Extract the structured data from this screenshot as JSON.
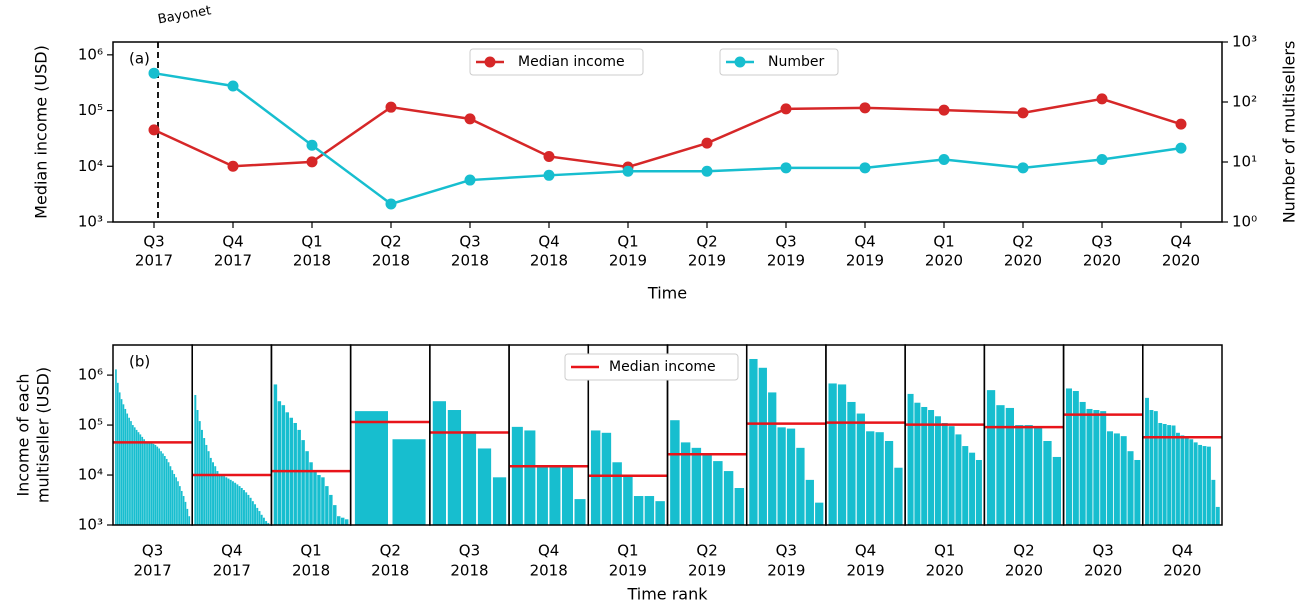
{
  "chart_data": [
    {
      "type": "line",
      "panel_label": "(a)",
      "xlabel": "Time",
      "ylabel": "Median income (USD)",
      "y2label": "Number of multisellers",
      "annotation": "Bayonet",
      "categories": [
        [
          "Q3",
          "2017"
        ],
        [
          "Q4",
          "2017"
        ],
        [
          "Q1",
          "2018"
        ],
        [
          "Q2",
          "2018"
        ],
        [
          "Q3",
          "2018"
        ],
        [
          "Q4",
          "2018"
        ],
        [
          "Q1",
          "2019"
        ],
        [
          "Q2",
          "2019"
        ],
        [
          "Q3",
          "2019"
        ],
        [
          "Q4",
          "2019"
        ],
        [
          "Q1",
          "2020"
        ],
        [
          "Q2",
          "2020"
        ],
        [
          "Q3",
          "2020"
        ],
        [
          "Q4",
          "2020"
        ]
      ],
      "series": [
        {
          "name": "Median income",
          "color": "#d62728",
          "values": [
            45000,
            10000,
            12000,
            115000,
            71000,
            15000,
            9700,
            26000,
            107000,
            112000,
            102000,
            91000,
            162000,
            57000
          ]
        },
        {
          "name": "Number",
          "color": "#17becf",
          "axis": "y2",
          "values": [
            302,
            185,
            19,
            2,
            5,
            6,
            7,
            7,
            8,
            8,
            11,
            8,
            11,
            17
          ]
        }
      ],
      "log_scale": true,
      "ylim": [
        1000,
        1700000
      ],
      "yticks": [
        {
          "value": 1000,
          "label": "10³"
        },
        {
          "value": 10000,
          "label": "10⁴"
        },
        {
          "value": 100000,
          "label": "10⁵"
        },
        {
          "value": 1000000,
          "label": "10⁶"
        }
      ],
      "y2lim": [
        1,
        1000
      ],
      "y2ticks": [
        {
          "value": 1,
          "label": "10⁰"
        },
        {
          "value": 10,
          "label": "10¹"
        },
        {
          "value": 100,
          "label": "10²"
        },
        {
          "value": 1000,
          "label": "10³"
        }
      ]
    },
    {
      "type": "bar",
      "panel_label": "(b)",
      "xlabel": "Time rank",
      "ylabel": [
        "Income of each",
        "multiseller (USD)"
      ],
      "categories": [
        [
          "Q3",
          "2017"
        ],
        [
          "Q4",
          "2017"
        ],
        [
          "Q1",
          "2018"
        ],
        [
          "Q2",
          "2018"
        ],
        [
          "Q3",
          "2018"
        ],
        [
          "Q4",
          "2018"
        ],
        [
          "Q1",
          "2019"
        ],
        [
          "Q2",
          "2019"
        ],
        [
          "Q3",
          "2019"
        ],
        [
          "Q4",
          "2019"
        ],
        [
          "Q1",
          "2020"
        ],
        [
          "Q2",
          "2020"
        ],
        [
          "Q3",
          "2020"
        ],
        [
          "Q4",
          "2020"
        ]
      ],
      "color": "#17becf",
      "values": [
        [
          1300000,
          700000,
          450000,
          330000,
          260000,
          210000,
          170000,
          140000,
          120000,
          100000,
          90000,
          80000,
          72000,
          65000,
          58000,
          52000,
          47000,
          45000,
          44000,
          43000,
          42000,
          40000,
          37000,
          34000,
          30000,
          27000,
          24000,
          21000,
          18000,
          15000,
          12500,
          10500,
          9000,
          7500,
          6000,
          4800,
          3800,
          2900,
          2100,
          1500
        ],
        [
          400000,
          200000,
          120000,
          80000,
          55000,
          40000,
          30000,
          22000,
          18000,
          15000,
          12000,
          10500,
          10000,
          9500,
          9000,
          8500,
          8000,
          7500,
          7000,
          6500,
          6000,
          5500,
          5000,
          4500,
          4000,
          3500,
          3000,
          2600,
          2200,
          1900,
          1600,
          1400,
          1200,
          1100
        ],
        [
          650000,
          300000,
          250000,
          180000,
          140000,
          110000,
          80000,
          50000,
          30000,
          18000,
          12000,
          10000,
          9000,
          6000,
          4000,
          2500,
          1500,
          1400,
          1300
        ],
        [
          190000,
          52000
        ],
        [
          300000,
          200000,
          75000,
          34000,
          9000
        ],
        [
          92000,
          78000,
          15500,
          15000,
          14500,
          3300
        ],
        [
          78000,
          70000,
          18000,
          9500,
          3800,
          3800,
          3000
        ],
        [
          125000,
          45000,
          35000,
          26000,
          19000,
          12000,
          5500
        ],
        [
          2100000,
          1400000,
          450000,
          90000,
          85000,
          35000,
          8000,
          2800
        ],
        [
          680000,
          650000,
          290000,
          170000,
          75000,
          72000,
          48000,
          14000
        ],
        [
          420000,
          280000,
          230000,
          200000,
          150000,
          110000,
          95000,
          65000,
          38000,
          28000,
          20000
        ],
        [
          500000,
          250000,
          220000,
          100000,
          100000,
          95000,
          48000,
          23000
        ],
        [
          540000,
          480000,
          290000,
          210000,
          200000,
          190000,
          75000,
          68000,
          60000,
          30000,
          20000
        ],
        [
          350000,
          200000,
          190000,
          110000,
          105000,
          100000,
          98000,
          70000,
          62000,
          55000,
          52000,
          45000,
          40000,
          38000,
          37000,
          8000,
          2300
        ]
      ],
      "median_series": {
        "name": "Median income",
        "color": "#e8141a",
        "values": [
          45000,
          10000,
          12000,
          115000,
          71000,
          15000,
          9700,
          26000,
          107000,
          112000,
          102000,
          91000,
          162000,
          57000
        ]
      },
      "log_scale": true,
      "ylim": [
        1000,
        4000000
      ],
      "yticks": [
        {
          "value": 1000,
          "label": "10³"
        },
        {
          "value": 10000,
          "label": "10⁴"
        },
        {
          "value": 100000,
          "label": "10⁵"
        },
        {
          "value": 1000000,
          "label": "10⁶"
        }
      ]
    }
  ]
}
